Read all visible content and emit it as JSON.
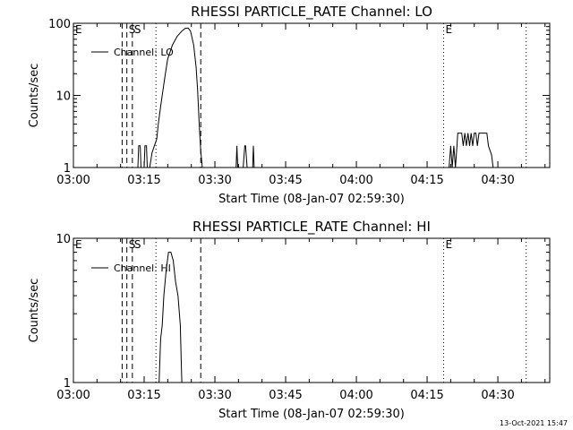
{
  "footer": {
    "timestamp": "13-Oct-2021 15:47"
  },
  "chart_data": [
    {
      "type": "line",
      "title": "RHESSI PARTICLE_RATE Channel: LO",
      "xlabel": "Start Time (08-Jan-07 02:59:30)",
      "ylabel": "Counts/sec",
      "yscale": "log",
      "xlim": [
        "03:00",
        "04:41"
      ],
      "ylim": [
        1,
        100
      ],
      "xticks": [
        "03:00",
        "03:15",
        "03:30",
        "03:45",
        "04:00",
        "04:15",
        "04:30"
      ],
      "yticks": [
        "1",
        "10",
        "100"
      ],
      "legend": {
        "position": "top-left",
        "entries": [
          "Channel: LO"
        ]
      },
      "event_markers": [
        {
          "time": "03:10:20",
          "style": "dashed",
          "label": ""
        },
        {
          "time": "03:11:20",
          "style": "dashed",
          "label": "S"
        },
        {
          "time": "03:12:30",
          "style": "dashed",
          "label": "S"
        },
        {
          "time": "03:17:30",
          "style": "dotted",
          "label": ""
        },
        {
          "time": "03:27:00",
          "style": "dashed",
          "label": ""
        },
        {
          "time": "04:18:30",
          "style": "dotted",
          "label": "E"
        },
        {
          "time": "04:36:00",
          "style": "dotted",
          "label": ""
        }
      ],
      "corner_labels": [
        {
          "text": "E",
          "position": "top-left"
        }
      ],
      "series": [
        {
          "name": "Channel: LO",
          "points": [
            [
              "03:13:40",
              1
            ],
            [
              "03:13:50",
              2
            ],
            [
              "03:14:10",
              2
            ],
            [
              "03:14:20",
              1
            ],
            [
              "03:15:00",
              1
            ],
            [
              "03:15:10",
              2
            ],
            [
              "03:15:30",
              2
            ],
            [
              "03:15:40",
              1
            ],
            [
              "03:16:10",
              1
            ],
            [
              "03:16:40",
              1.6
            ],
            [
              "03:17:10",
              2
            ],
            [
              "03:17:40",
              2.5
            ],
            [
              "03:18:00",
              4
            ],
            [
              "03:18:30",
              7
            ],
            [
              "03:19:00",
              12
            ],
            [
              "03:19:30",
              20
            ],
            [
              "03:20:00",
              32
            ],
            [
              "03:21:00",
              50
            ],
            [
              "03:22:00",
              66
            ],
            [
              "03:23:00",
              78
            ],
            [
              "03:23:40",
              85
            ],
            [
              "03:24:20",
              86
            ],
            [
              "03:24:50",
              78
            ],
            [
              "03:25:30",
              50
            ],
            [
              "03:26:00",
              25
            ],
            [
              "03:26:20",
              12
            ],
            [
              "03:26:40",
              4
            ],
            [
              "03:27:00",
              1.7
            ],
            [
              "03:27:20",
              1
            ],
            [
              "03:34:30",
              1
            ],
            [
              "03:34:40",
              2
            ],
            [
              "03:34:50",
              1
            ],
            [
              "03:36:00",
              1
            ],
            [
              "03:36:20",
              2
            ],
            [
              "03:36:30",
              2
            ],
            [
              "03:36:50",
              1
            ],
            [
              "03:38:00",
              1
            ],
            [
              "03:38:10",
              2
            ],
            [
              "03:38:20",
              1
            ],
            [
              "04:19:40",
              1
            ],
            [
              "04:20:00",
              2
            ],
            [
              "04:20:20",
              1
            ],
            [
              "04:20:40",
              2
            ],
            [
              "04:21:00",
              1
            ],
            [
              "04:21:20",
              2
            ],
            [
              "04:21:30",
              3
            ],
            [
              "04:22:20",
              3
            ],
            [
              "04:22:40",
              2
            ],
            [
              "04:23:00",
              3
            ],
            [
              "04:23:20",
              2
            ],
            [
              "04:23:40",
              3
            ],
            [
              "04:24:00",
              2
            ],
            [
              "04:24:20",
              3
            ],
            [
              "04:24:40",
              2
            ],
            [
              "04:25:00",
              3
            ],
            [
              "04:25:20",
              3
            ],
            [
              "04:25:40",
              2
            ],
            [
              "04:26:00",
              3
            ],
            [
              "04:27:40",
              3
            ],
            [
              "04:28:00",
              2
            ],
            [
              "04:28:40",
              1.5
            ],
            [
              "04:29:00",
              1
            ]
          ]
        }
      ]
    },
    {
      "type": "line",
      "title": "RHESSI PARTICLE_RATE Channel: HI",
      "xlabel": "Start Time (08-Jan-07 02:59:30)",
      "ylabel": "Counts/sec",
      "yscale": "log",
      "xlim": [
        "03:00",
        "04:41"
      ],
      "ylim": [
        1,
        10
      ],
      "xticks": [
        "03:00",
        "03:15",
        "03:30",
        "03:45",
        "04:00",
        "04:15",
        "04:30"
      ],
      "yticks": [
        "1",
        "10"
      ],
      "legend": {
        "position": "top-left",
        "entries": [
          "Channel: HI"
        ]
      },
      "event_markers": [
        {
          "time": "03:10:20",
          "style": "dashed",
          "label": ""
        },
        {
          "time": "03:11:20",
          "style": "dashed",
          "label": "S"
        },
        {
          "time": "03:12:30",
          "style": "dashed",
          "label": "S"
        },
        {
          "time": "03:17:30",
          "style": "dotted",
          "label": ""
        },
        {
          "time": "03:27:00",
          "style": "dashed",
          "label": ""
        },
        {
          "time": "04:18:30",
          "style": "dotted",
          "label": "E"
        },
        {
          "time": "04:36:00",
          "style": "dotted",
          "label": ""
        }
      ],
      "corner_labels": [
        {
          "text": "E",
          "position": "top-left"
        }
      ],
      "series": [
        {
          "name": "Channel: HI",
          "points": [
            [
              "03:18:10",
              1
            ],
            [
              "03:18:30",
              2
            ],
            [
              "03:18:50",
              2.5
            ],
            [
              "03:19:10",
              4
            ],
            [
              "03:19:40",
              6
            ],
            [
              "03:20:10",
              8
            ],
            [
              "03:20:40",
              8
            ],
            [
              "03:21:10",
              7
            ],
            [
              "03:21:40",
              5
            ],
            [
              "03:22:10",
              4
            ],
            [
              "03:22:40",
              2.5
            ],
            [
              "03:22:50",
              1.5
            ],
            [
              "03:23:00",
              1
            ]
          ]
        }
      ]
    }
  ]
}
